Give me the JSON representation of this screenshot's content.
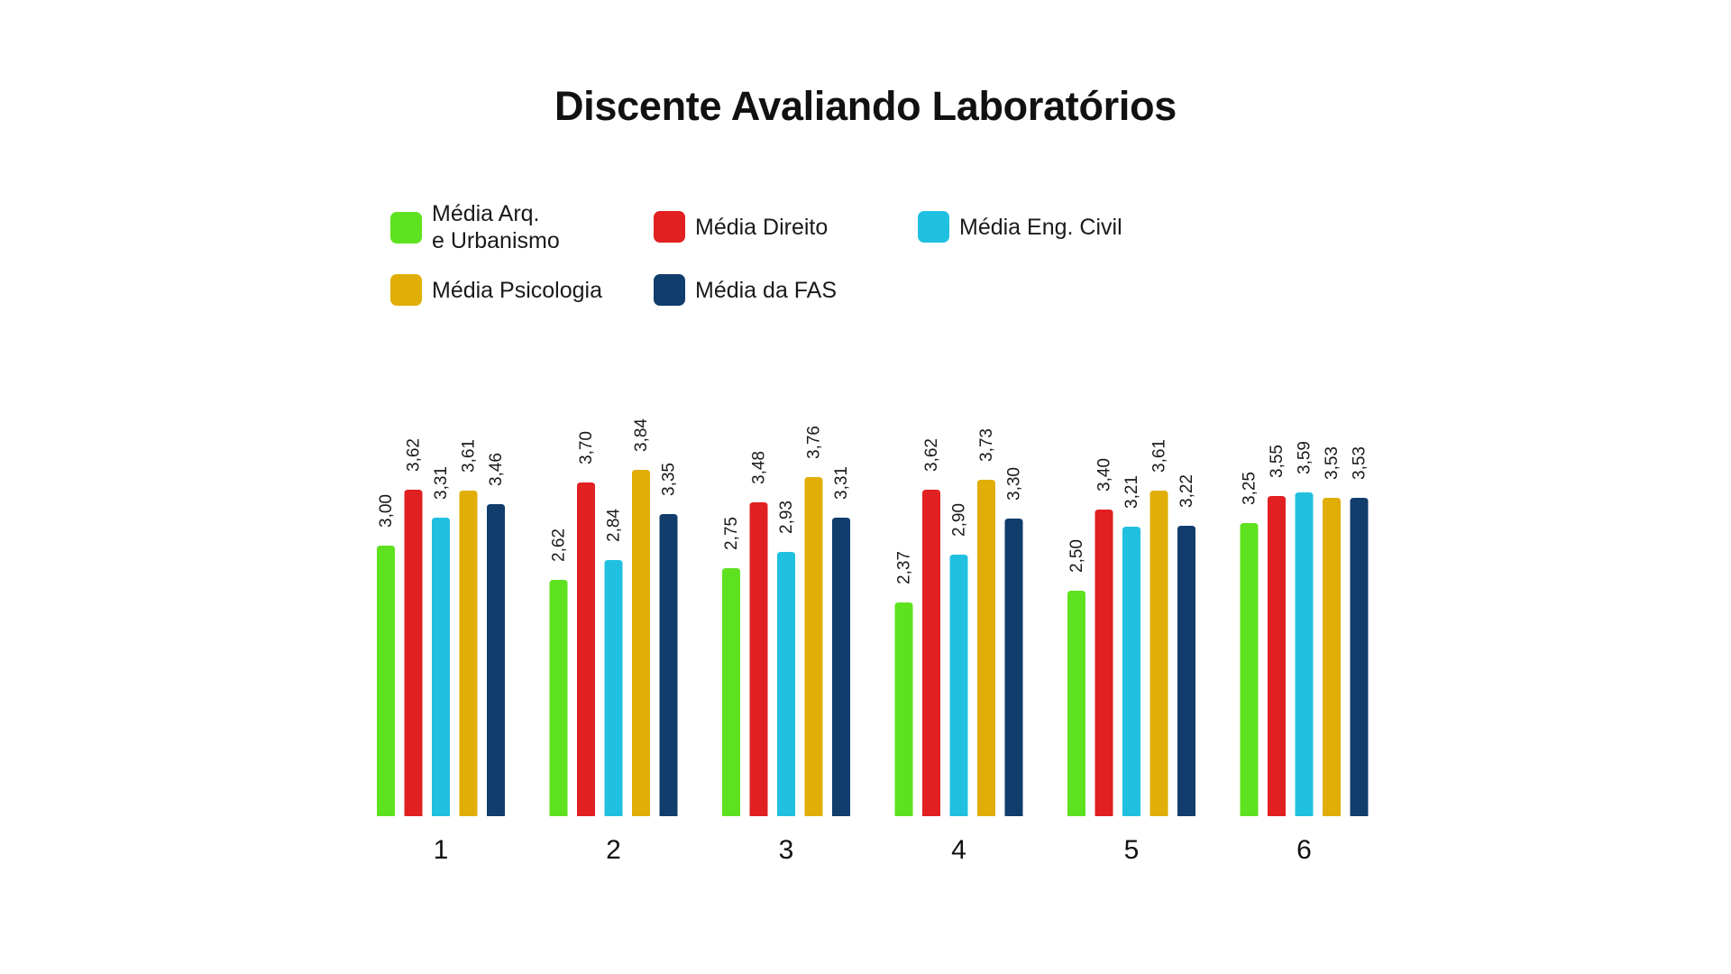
{
  "chart_data": {
    "type": "bar",
    "title": "Discente Avaliando Laboratórios",
    "xlabel": "",
    "ylabel": "",
    "ylim": [
      0,
      4.3
    ],
    "grid": false,
    "legend_position": "top-left",
    "categories": [
      "1",
      "2",
      "3",
      "4",
      "5",
      "6"
    ],
    "series": [
      {
        "name": "Média Arq.\ne Urbanismo",
        "color": "#5ee21f",
        "values": [
          3.0,
          2.62,
          2.75,
          2.37,
          2.5,
          3.25
        ],
        "labels": [
          "3,00",
          "2,62",
          "2,75",
          "2,37",
          "2,50",
          "3,25"
        ]
      },
      {
        "name": "Média Direito",
        "color": "#e12022",
        "values": [
          3.62,
          3.7,
          3.48,
          3.62,
          3.4,
          3.55
        ],
        "labels": [
          "3,62",
          "3,70",
          "3,48",
          "3,62",
          "3,40",
          "3,55"
        ]
      },
      {
        "name": "Média Eng. Civil",
        "color": "#20c0e1",
        "values": [
          3.31,
          2.84,
          2.93,
          2.9,
          3.21,
          3.59
        ],
        "labels": [
          "3,31",
          "2,84",
          "2,93",
          "2,90",
          "3,21",
          "3,59"
        ]
      },
      {
        "name": "Média Psicologia",
        "color": "#e0ae06",
        "values": [
          3.61,
          3.84,
          3.76,
          3.73,
          3.61,
          3.53
        ],
        "labels": [
          "3,61",
          "3,84",
          "3,76",
          "3,73",
          "3,61",
          "3,53"
        ]
      },
      {
        "name": "Média da FAS",
        "color": "#113d6c",
        "values": [
          3.46,
          3.35,
          3.31,
          3.3,
          3.22,
          3.53
        ],
        "labels": [
          "3,46",
          "3,35",
          "3,31",
          "3,30",
          "3,22",
          "3,53"
        ]
      }
    ]
  }
}
